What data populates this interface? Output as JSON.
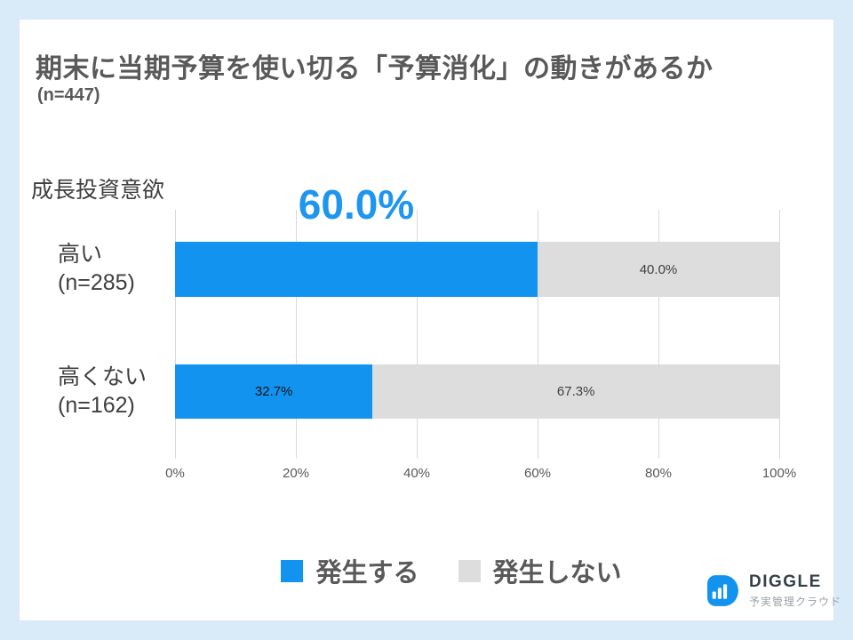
{
  "slide": {
    "title": "期末に当期予算を使い切る「予算消化」の動きがあるか",
    "subtitle": "(n=447)"
  },
  "chart_data": {
    "type": "bar",
    "orientation": "horizontal",
    "stacked": true,
    "axis_group_label": "成長投資意欲",
    "categories": [
      {
        "label": "高い",
        "n": "(n=285)"
      },
      {
        "label": "高くない",
        "n": "(n=162)"
      }
    ],
    "series": [
      {
        "name": "発生する",
        "color": "#1193EF",
        "values": [
          60.0,
          32.7
        ]
      },
      {
        "name": "発生しない",
        "color": "#DDDDDD",
        "values": [
          40.0,
          67.3
        ]
      }
    ],
    "highlight": {
      "row": 0,
      "series": 0,
      "label": "60.0%",
      "color": "#1E96F0"
    },
    "segment_labels": [
      [
        null,
        "40.0%"
      ],
      [
        "32.7%",
        "67.3%"
      ]
    ],
    "x_ticks": [
      "0%",
      "20%",
      "40%",
      "60%",
      "80%",
      "100%"
    ],
    "xlim": [
      0,
      100
    ],
    "grid": true,
    "legend_position": "bottom"
  },
  "logo": {
    "brand": "DIGGLE",
    "tagline": "予実管理クラウド",
    "icon": "diggle-d-barchart-icon",
    "color": "#1193EF"
  },
  "colors": {
    "page_background": "#D9EAF9",
    "card_background": "#FFFFFF",
    "title_text": "#595959",
    "label_text": "#3F3F3F",
    "axis_text": "#595959",
    "gridline": "#D9D9D9",
    "inline_label_on_blue": "#141414",
    "inline_label_on_gray": "#404040"
  }
}
